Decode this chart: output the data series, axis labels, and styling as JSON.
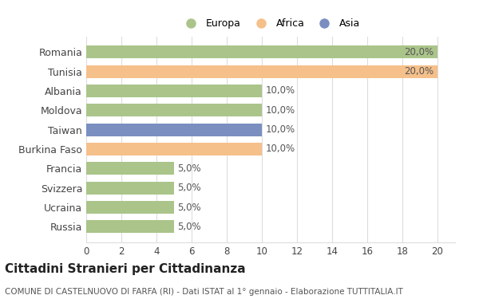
{
  "countries": [
    "Romania",
    "Tunisia",
    "Albania",
    "Moldova",
    "Taiwan",
    "Burkina Faso",
    "Francia",
    "Svizzera",
    "Ucraina",
    "Russia"
  ],
  "values": [
    20.0,
    20.0,
    10.0,
    10.0,
    10.0,
    10.0,
    5.0,
    5.0,
    5.0,
    5.0
  ],
  "continents": [
    "Europa",
    "Africa",
    "Europa",
    "Europa",
    "Asia",
    "Africa",
    "Europa",
    "Europa",
    "Europa",
    "Europa"
  ],
  "colors": {
    "Europa": "#aac48a",
    "Africa": "#f5c08a",
    "Asia": "#7a8fc0"
  },
  "bar_labels": [
    "20,0%",
    "20,0%",
    "10,0%",
    "10,0%",
    "10,0%",
    "10,0%",
    "5,0%",
    "5,0%",
    "5,0%",
    "5,0%"
  ],
  "xlim": [
    0,
    21
  ],
  "xticks": [
    0,
    2,
    4,
    6,
    8,
    10,
    12,
    14,
    16,
    18,
    20
  ],
  "title": "Cittadini Stranieri per Cittadinanza",
  "subtitle": "COMUNE DI CASTELNUOVO DI FARFA (RI) - Dati ISTAT al 1° gennaio - Elaborazione TUTTITALIA.IT",
  "legend_order": [
    "Europa",
    "Africa",
    "Asia"
  ],
  "bg_color": "#ffffff",
  "grid_color": "#dddddd"
}
